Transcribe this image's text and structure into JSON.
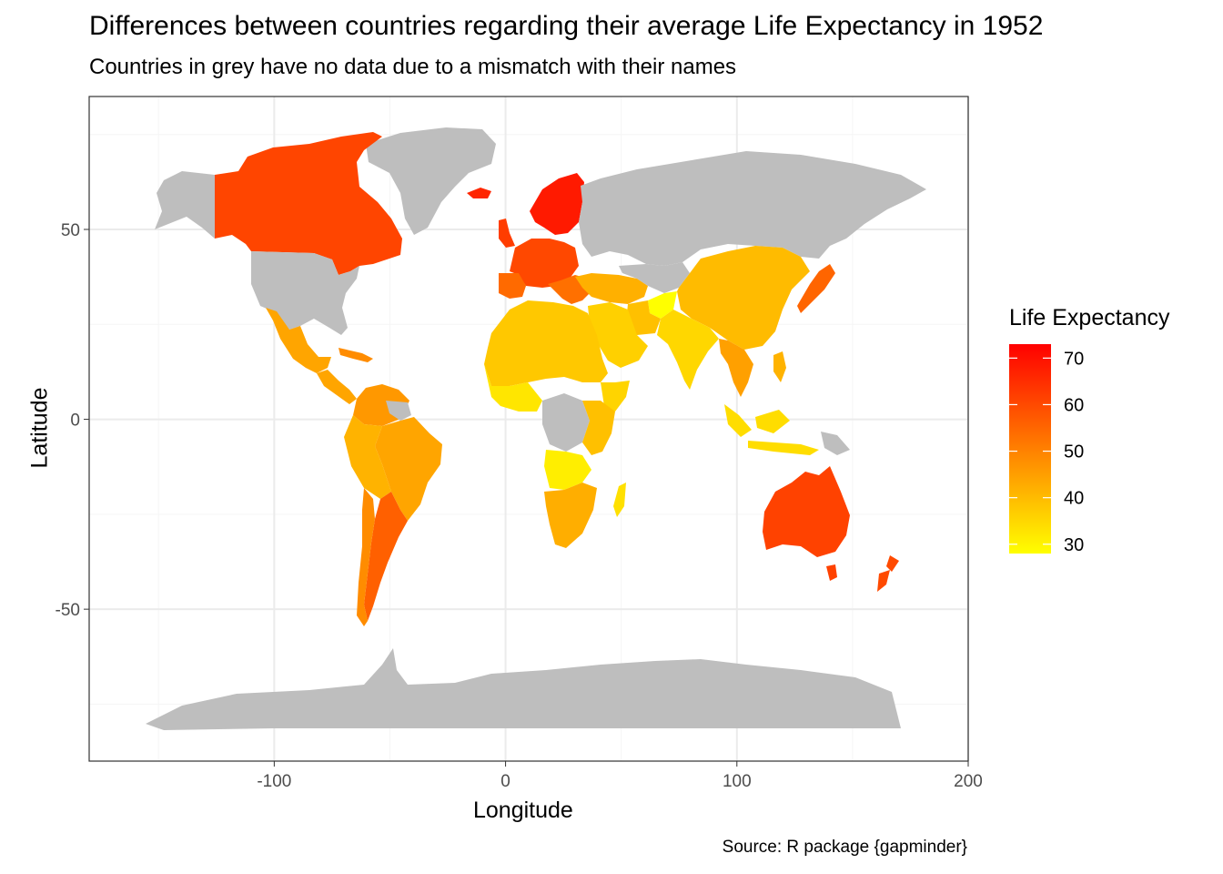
{
  "title": "Differences between countries regarding their average Life Expectancy in 1952",
  "subtitle": "Countries in grey have no data due to a mismatch with their names",
  "caption": "Source: R package {gapminder}",
  "axes": {
    "x_label": "Longitude",
    "y_label": "Latitude",
    "x_ticks": [
      "-100",
      "0",
      "100",
      "200"
    ],
    "y_ticks": [
      "50",
      "0",
      "-50"
    ]
  },
  "legend": {
    "title": "Life Expectancy",
    "ticks": [
      "70",
      "60",
      "50",
      "40",
      "30"
    ],
    "color_low": "#ffff00",
    "color_high": "#ff0000"
  },
  "colors": {
    "no_data": "#bebebe",
    "panel_border": "#333333",
    "grid_major": "#ebebeb",
    "grid_minor": "#f5f5f5"
  },
  "chart_data": {
    "type": "choropleth",
    "xlim": [
      -180,
      200
    ],
    "ylim": [
      -90,
      85
    ],
    "legend_range": [
      28,
      73
    ],
    "regions": [
      {
        "name": "Canada",
        "value": 68
      },
      {
        "name": "Mexico",
        "value": 51
      },
      {
        "name": "Brazil",
        "value": 51
      },
      {
        "name": "Argentina",
        "value": 62
      },
      {
        "name": "Chile",
        "value": 55
      },
      {
        "name": "Colombia",
        "value": 50
      },
      {
        "name": "Peru",
        "value": 44
      },
      {
        "name": "Norway",
        "value": 72
      },
      {
        "name": "Sweden",
        "value": 71
      },
      {
        "name": "France",
        "value": 67
      },
      {
        "name": "Spain",
        "value": 64
      },
      {
        "name": "Italy",
        "value": 66
      },
      {
        "name": "Egypt",
        "value": 41
      },
      {
        "name": "Algeria",
        "value": 43
      },
      {
        "name": "Libya",
        "value": 43
      },
      {
        "name": "Mali",
        "value": 33
      },
      {
        "name": "Niger",
        "value": 38
      },
      {
        "name": "Sudan",
        "value": 38
      },
      {
        "name": "Ethiopia",
        "value": 34
      },
      {
        "name": "Angola",
        "value": 30
      },
      {
        "name": "Zambia",
        "value": 42
      },
      {
        "name": "South Africa",
        "value": 46
      },
      {
        "name": "Madagascar",
        "value": 37
      },
      {
        "name": "Saudi Arabia",
        "value": 40
      },
      {
        "name": "Turkey",
        "value": 43
      },
      {
        "name": "Iran",
        "value": 45
      },
      {
        "name": "Afghanistan",
        "value": 29
      },
      {
        "name": "India",
        "value": 37
      },
      {
        "name": "China",
        "value": 44
      },
      {
        "name": "Mongolia",
        "value": 42
      },
      {
        "name": "Japan",
        "value": 63
      },
      {
        "name": "Indonesia",
        "value": 37
      },
      {
        "name": "Philippines",
        "value": 47
      },
      {
        "name": "Australia",
        "value": 69
      },
      {
        "name": "New Zealand",
        "value": 69
      }
    ]
  }
}
